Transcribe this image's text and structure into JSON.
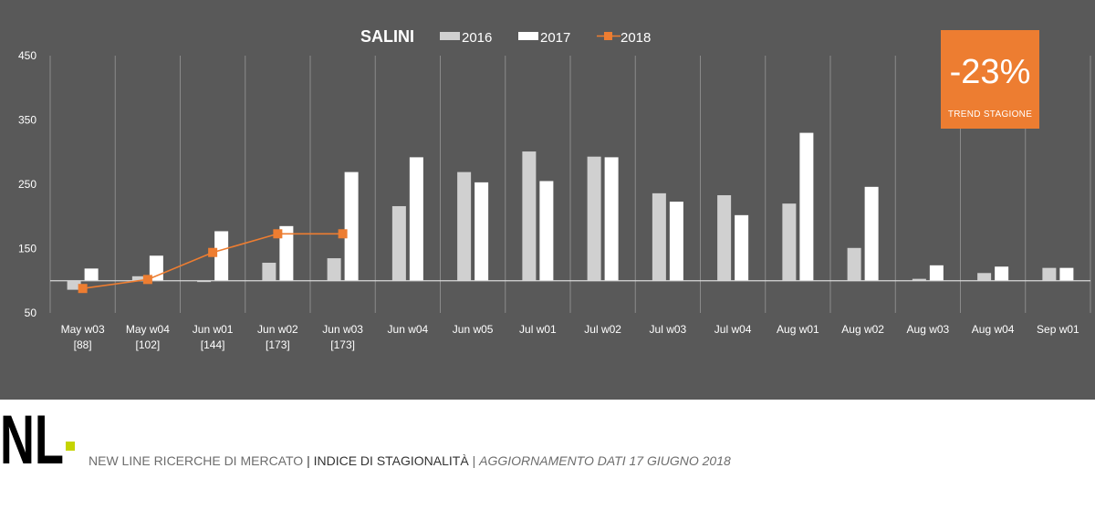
{
  "chart_data": {
    "type": "bar",
    "title": "SALINI",
    "categories": [
      [
        "May w03",
        "[88]"
      ],
      [
        "May w04",
        "[102]"
      ],
      [
        "Jun w01",
        "[144]"
      ],
      [
        "Jun w02",
        "[173]"
      ],
      [
        "Jun w03",
        "[173]"
      ],
      [
        "Jun w04"
      ],
      [
        "Jun w05"
      ],
      [
        "Jul w01"
      ],
      [
        "Jul w02"
      ],
      [
        "Jul w03"
      ],
      [
        "Jul w04"
      ],
      [
        "Aug w01"
      ],
      [
        "Aug w02"
      ],
      [
        "Aug w03"
      ],
      [
        "Aug w04"
      ],
      [
        "Sep w01"
      ]
    ],
    "series": [
      {
        "name": "2016",
        "type": "bar",
        "color": "#d0d0d0",
        "values": [
          86,
          107,
          98,
          128,
          135,
          216,
          269,
          301,
          293,
          236,
          233,
          220,
          151,
          103,
          112,
          120
        ]
      },
      {
        "name": "2017",
        "type": "bar",
        "color": "#ffffff",
        "values": [
          119,
          139,
          177,
          185,
          269,
          292,
          253,
          255,
          292,
          223,
          202,
          330,
          246,
          124,
          122,
          120
        ]
      },
      {
        "name": "2018",
        "type": "line",
        "color": "#ed7d31",
        "values": [
          88,
          102,
          144,
          173,
          173,
          null,
          null,
          null,
          null,
          null,
          null,
          null,
          null,
          null,
          null,
          null
        ]
      }
    ],
    "baseline": 100,
    "ylim": [
      50,
      450
    ],
    "yticks": [
      50,
      150,
      250,
      350,
      450
    ],
    "grid": true,
    "legend_position": "top"
  },
  "trend": {
    "value": "-23%",
    "label": "TREND  STAGIONE"
  },
  "logo": {
    "text": "NL"
  },
  "footer": {
    "company": "NEW LINE RICERCHE DI MERCATO",
    "separator": "|",
    "report": "INDICE DI STAGIONALITÀ",
    "update": "AGGIORNAMENTO DATI 17 GIUGNO 2018"
  },
  "colors": {
    "panel_bg": "#595959",
    "accent": "#ed7d31",
    "logo_square": "#c5d400",
    "gridline": "#8a8a8a"
  }
}
